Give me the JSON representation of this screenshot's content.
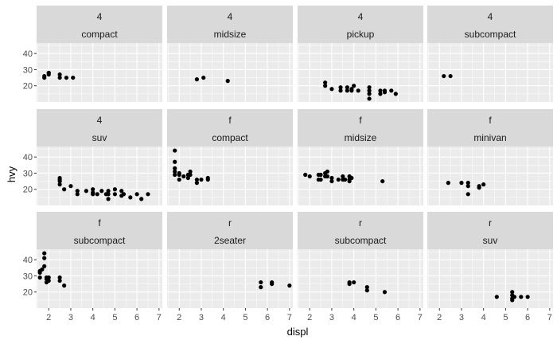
{
  "chart_data": {
    "type": "scatter",
    "xlabel": "displ",
    "ylabel": "hvy",
    "xlim": [
      1.45,
      7.15
    ],
    "ylim": [
      10,
      46.5
    ],
    "x_ticks": [
      2,
      3,
      4,
      5,
      6,
      7
    ],
    "y_ticks": [
      20,
      30,
      40
    ],
    "grid": true,
    "facet_layout": {
      "rows": 3,
      "cols": 4
    },
    "colors": {
      "panel_bg": "#ebebeb",
      "strip_bg": "#d9d9d9",
      "gridline": "#ffffff",
      "point": "#000000",
      "tick_text": "#4d4d4d",
      "strip_text": "#1a1a1a"
    },
    "panels": [
      {
        "strip": [
          "4",
          "compact"
        ],
        "points": [
          [
            1.8,
            25
          ],
          [
            1.8,
            26
          ],
          [
            2.0,
            27
          ],
          [
            2.0,
            28
          ],
          [
            2.0,
            28
          ],
          [
            2.5,
            25
          ],
          [
            2.5,
            27
          ],
          [
            2.8,
            25
          ],
          [
            3.1,
            25
          ]
        ]
      },
      {
        "strip": [
          "4",
          "midsize"
        ],
        "points": [
          [
            2.8,
            24
          ],
          [
            3.1,
            25
          ],
          [
            4.2,
            23
          ]
        ]
      },
      {
        "strip": [
          "4",
          "pickup"
        ],
        "points": [
          [
            2.7,
            20
          ],
          [
            2.7,
            22
          ],
          [
            3.0,
            18
          ],
          [
            3.4,
            17
          ],
          [
            3.4,
            19
          ],
          [
            3.7,
            17
          ],
          [
            3.7,
            19
          ],
          [
            3.9,
            17
          ],
          [
            3.9,
            18
          ],
          [
            4.0,
            20
          ],
          [
            4.2,
            17
          ],
          [
            4.7,
            12
          ],
          [
            4.7,
            15
          ],
          [
            4.7,
            17
          ],
          [
            4.7,
            19
          ],
          [
            5.2,
            15
          ],
          [
            5.2,
            17
          ],
          [
            5.4,
            16
          ],
          [
            5.4,
            17
          ],
          [
            5.7,
            17
          ],
          [
            5.9,
            15
          ]
        ]
      },
      {
        "strip": [
          "4",
          "subcompact"
        ],
        "points": [
          [
            2.2,
            26
          ],
          [
            2.5,
            26
          ]
        ]
      },
      {
        "strip": [
          "4",
          "suv"
        ],
        "points": [
          [
            2.5,
            23
          ],
          [
            2.5,
            25
          ],
          [
            2.5,
            26
          ],
          [
            2.5,
            27
          ],
          [
            2.7,
            20
          ],
          [
            3.0,
            22
          ],
          [
            3.3,
            17
          ],
          [
            3.3,
            19
          ],
          [
            3.7,
            19
          ],
          [
            4.0,
            17
          ],
          [
            4.0,
            18
          ],
          [
            4.0,
            20
          ],
          [
            4.2,
            17
          ],
          [
            4.4,
            19
          ],
          [
            4.6,
            17
          ],
          [
            4.7,
            14
          ],
          [
            4.7,
            17
          ],
          [
            4.7,
            19
          ],
          [
            5.0,
            17
          ],
          [
            5.0,
            20
          ],
          [
            5.3,
            16
          ],
          [
            5.3,
            19
          ],
          [
            5.4,
            17
          ],
          [
            5.7,
            15
          ],
          [
            6.0,
            17
          ],
          [
            6.2,
            14
          ],
          [
            6.5,
            17
          ]
        ]
      },
      {
        "strip": [
          "f",
          "compact"
        ],
        "points": [
          [
            1.8,
            29
          ],
          [
            1.8,
            31
          ],
          [
            1.8,
            33
          ],
          [
            1.8,
            37
          ],
          [
            1.8,
            44
          ],
          [
            2.0,
            26
          ],
          [
            2.0,
            29
          ],
          [
            2.0,
            30
          ],
          [
            2.2,
            28
          ],
          [
            2.4,
            27
          ],
          [
            2.4,
            29
          ],
          [
            2.5,
            29
          ],
          [
            2.5,
            31
          ],
          [
            2.8,
            24
          ],
          [
            2.8,
            26
          ],
          [
            3.0,
            26
          ],
          [
            3.3,
            26
          ],
          [
            3.3,
            27
          ]
        ]
      },
      {
        "strip": [
          "f",
          "midsize"
        ],
        "points": [
          [
            1.8,
            29
          ],
          [
            2.0,
            28
          ],
          [
            2.4,
            26
          ],
          [
            2.4,
            29
          ],
          [
            2.5,
            26
          ],
          [
            2.5,
            29
          ],
          [
            2.7,
            28
          ],
          [
            2.7,
            30
          ],
          [
            2.8,
            28
          ],
          [
            2.8,
            31
          ],
          [
            3.0,
            25
          ],
          [
            3.0,
            27
          ],
          [
            3.3,
            26
          ],
          [
            3.5,
            26
          ],
          [
            3.5,
            28
          ],
          [
            3.6,
            26
          ],
          [
            3.8,
            25
          ],
          [
            3.8,
            26
          ],
          [
            3.8,
            28
          ],
          [
            3.9,
            27
          ],
          [
            5.3,
            25
          ]
        ]
      },
      {
        "strip": [
          "f",
          "minivan"
        ],
        "points": [
          [
            2.4,
            24
          ],
          [
            3.0,
            24
          ],
          [
            3.3,
            17
          ],
          [
            3.3,
            22
          ],
          [
            3.3,
            24
          ],
          [
            3.8,
            21
          ],
          [
            3.8,
            22
          ],
          [
            4.0,
            23
          ]
        ]
      },
      {
        "strip": [
          "f",
          "subcompact"
        ],
        "points": [
          [
            1.6,
            29
          ],
          [
            1.6,
            33
          ],
          [
            1.6,
            32
          ],
          [
            1.7,
            34
          ],
          [
            1.8,
            36
          ],
          [
            1.8,
            41
          ],
          [
            1.8,
            44
          ],
          [
            1.9,
            26
          ],
          [
            1.9,
            28
          ],
          [
            1.9,
            29
          ],
          [
            2.0,
            27
          ],
          [
            2.0,
            29
          ],
          [
            2.5,
            27
          ],
          [
            2.5,
            29
          ],
          [
            2.7,
            24
          ]
        ]
      },
      {
        "strip": [
          "r",
          "2seater"
        ],
        "points": [
          [
            5.7,
            23
          ],
          [
            5.7,
            26
          ],
          [
            6.2,
            25
          ],
          [
            6.2,
            26
          ],
          [
            7.0,
            24
          ]
        ]
      },
      {
        "strip": [
          "r",
          "subcompact"
        ],
        "points": [
          [
            3.8,
            25
          ],
          [
            3.8,
            26
          ],
          [
            4.0,
            26
          ],
          [
            4.6,
            21
          ],
          [
            4.6,
            23
          ],
          [
            5.4,
            20
          ]
        ]
      },
      {
        "strip": [
          "r",
          "suv"
        ],
        "points": [
          [
            4.6,
            17
          ],
          [
            5.3,
            15
          ],
          [
            5.3,
            16
          ],
          [
            5.3,
            18
          ],
          [
            5.3,
            20
          ],
          [
            5.4,
            17
          ],
          [
            5.7,
            17
          ],
          [
            6.0,
            17
          ]
        ]
      }
    ]
  }
}
